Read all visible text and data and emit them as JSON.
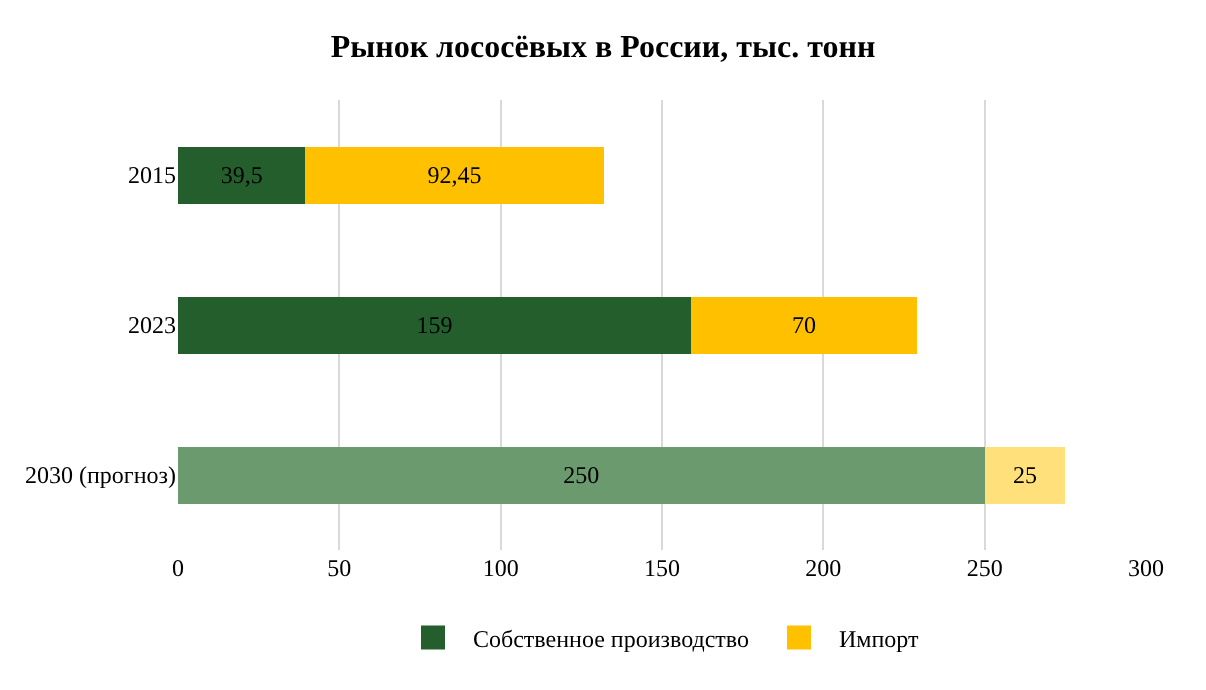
{
  "chart_data": {
    "type": "bar",
    "title": "Рынок лососёвых в России, тыс. тонн",
    "orientation": "horizontal",
    "stacked": true,
    "categories": [
      "2015",
      "2023",
      "2030 (прогноз)"
    ],
    "series": [
      {
        "name": "Собственное производство",
        "colors": [
          "#245e2c",
          "#245e2c",
          "#6b9a6f"
        ],
        "values": [
          39.5,
          159,
          250
        ],
        "value_labels": [
          "39,5",
          "159",
          "250"
        ]
      },
      {
        "name": "Импорт",
        "colors": [
          "#ffc000",
          "#ffc000",
          "#ffe07a"
        ],
        "values": [
          92.45,
          70,
          25
        ],
        "value_labels": [
          "92,45",
          "70",
          "25"
        ]
      }
    ],
    "xlim": [
      0,
      300
    ],
    "xticks": [
      0,
      50,
      100,
      150,
      200,
      250,
      300
    ],
    "grid": "x",
    "legend": "bottom"
  }
}
